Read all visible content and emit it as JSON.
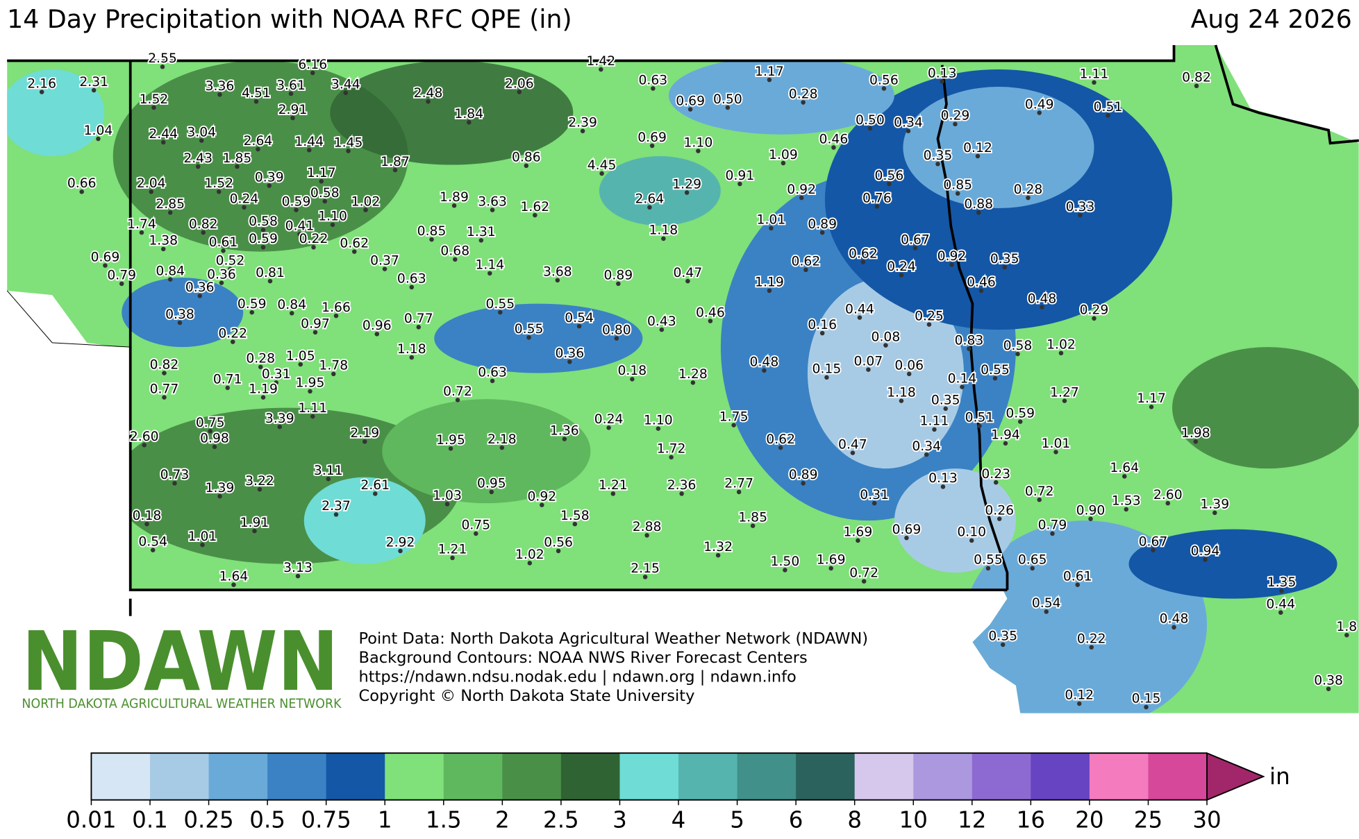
{
  "header": {
    "title": "14 Day Precipitation with NOAA RFC QPE (in)",
    "date": "Aug 24 2026"
  },
  "points": {
    "values": [
      2.55,
      2.16,
      2.31,
      1.52,
      3.36,
      4.51,
      3.61,
      6.16,
      3.44,
      2.91,
      2.48,
      1.42,
      2.06,
      1.84,
      0.63,
      0.69,
      0.5,
      1.17,
      0.28,
      0.56,
      0.13,
      1.11,
      0.82,
      0.49,
      0.51,
      0.5,
      0.34,
      0.29,
      1.04,
      2.44,
      3.04,
      2.39,
      2.64,
      1.44,
      1.45,
      0.69,
      1.1,
      0.46,
      0.12,
      0.35,
      2.43,
      1.85,
      1.87,
      0.86,
      4.45,
      1.09,
      0.66,
      2.04,
      1.52,
      0.39,
      1.17,
      0.58,
      0.91,
      0.56,
      0.85,
      0.28,
      1.29,
      0.92,
      0.76,
      0.24,
      0.59,
      1.02,
      1.89,
      3.63,
      1.62,
      2.64,
      0.88,
      0.33,
      2.85,
      0.82,
      0.58,
      0.41,
      1.1,
      1.74,
      1.01,
      0.89,
      0.85,
      1.31,
      1.18,
      1.38,
      0.61,
      0.59,
      0.22,
      0.62,
      0.67,
      0.69,
      0.52,
      0.68,
      0.62,
      0.62,
      0.92,
      0.35,
      0.37,
      1.14,
      0.24,
      0.79,
      0.84,
      0.36,
      0.81,
      0.63,
      3.68,
      0.89,
      0.47,
      1.19,
      0.46,
      0.36,
      0.48,
      0.29,
      0.59,
      0.84,
      1.66,
      0.55,
      0.44,
      0.25,
      0.38,
      0.97,
      0.96,
      0.77,
      0.54,
      0.8,
      0.43,
      0.46,
      0.16,
      0.22,
      0.55,
      0.08,
      0.83,
      0.58,
      1.02,
      1.18,
      0.36,
      0.82,
      0.28,
      1.05,
      1.78,
      0.18,
      1.28,
      0.48,
      0.15,
      0.07,
      0.06,
      0.55,
      0.63,
      0.31,
      0.71,
      1.95,
      0.14,
      0.77,
      1.19,
      0.72,
      1.18,
      1.27,
      1.17,
      0.35,
      1.11,
      0.59,
      0.75,
      3.39,
      0.24,
      1.1,
      1.75,
      1.11,
      0.51,
      2.6,
      0.98,
      2.19,
      1.95,
      2.18,
      1.36,
      1.72,
      0.62,
      0.47,
      0.34,
      1.94,
      1.01,
      1.98,
      1.64,
      3.11,
      0.73,
      0.13,
      0.23,
      3.22,
      1.39,
      2.61,
      0.95,
      1.21,
      2.36,
      2.77,
      0.89,
      0.72,
      1.03,
      0.92,
      0.31,
      2.6,
      1.53,
      0.9,
      1.39,
      2.37,
      0.26,
      0.18,
      1.58,
      1.85,
      1.91,
      0.75,
      2.88,
      0.79,
      1.69,
      0.69,
      0.1,
      0.54,
      1.01,
      2.92,
      1.21,
      0.56,
      1.32,
      0.67,
      0.94,
      1.02,
      1.5,
      1.69,
      0.55,
      0.65,
      3.13,
      2.15,
      0.72,
      0.61,
      1.64,
      1.35,
      0.54,
      0.44,
      0.48,
      1.8,
      0.35,
      0.22,
      0.38,
      0.12,
      0.15
    ],
    "value_labels": [
      "2.55",
      "2.16",
      "2.31",
      "1.52",
      "3.36",
      "4.51",
      "3.61",
      "6.16",
      "3.44",
      "2.91",
      "2.48",
      "1.42",
      "2.06",
      "1.84",
      "0.63",
      "0.69",
      "0.50",
      "1.17",
      "0.28",
      "0.56",
      "0.13",
      "1.11",
      "0.82",
      "0.49",
      "0.51",
      "0.50",
      "0.34",
      "0.29",
      "1.04",
      "2.44",
      "3.04",
      "2.39",
      "2.64",
      "1.44",
      "1.45",
      "0.69",
      "1.10",
      "0.46",
      "0.12",
      "0.35",
      "2.43",
      "1.85",
      "1.87",
      "0.86",
      "4.45",
      "1.09",
      "0.66",
      "2.04",
      "1.52",
      "0.39",
      "1.17",
      "0.58",
      "0.91",
      "0.56",
      "0.85",
      "0.28",
      "1.29",
      "0.92",
      "0.76",
      "0.24",
      "0.59",
      "1.02",
      "1.89",
      "3.63",
      "1.62",
      "2.64",
      "0.88",
      "0.33",
      "2.85",
      "0.82",
      "0.58",
      "0.41",
      "1.10",
      "1.74",
      "1.01",
      "0.89",
      "0.85",
      "1.31",
      "1.18",
      "1.38",
      "0.61",
      "0.59",
      "0.22",
      "0.62",
      "0.67",
      "0.69",
      "0.52",
      "0.68",
      "0.62",
      "0.62",
      "0.92",
      "0.35",
      "0.37",
      "1.14",
      "0.24",
      "0.79",
      "0.84",
      "0.36",
      "0.81",
      "0.63",
      "3.68",
      "0.89",
      "0.47",
      "1.19",
      "0.46",
      "0.36",
      "0.48",
      "0.29",
      "0.59",
      "0.84",
      "1.66",
      "0.55",
      "0.44",
      "0.25",
      "0.38",
      "0.97",
      "0.96",
      "0.77",
      "0.54",
      "0.80",
      "0.43",
      "0.46",
      "0.16",
      "0.22",
      "0.55",
      "0.08",
      "0.83",
      "0.58",
      "1.02",
      "1.18",
      "0.36",
      "0.82",
      "0.28",
      "1.05",
      "1.78",
      "0.18",
      "1.28",
      "0.48",
      "0.15",
      "0.07",
      "0.06",
      "0.55",
      "0.63",
      "0.31",
      "0.71",
      "1.95",
      "0.14",
      "0.77",
      "1.19",
      "0.72",
      "1.18",
      "1.27",
      "1.17",
      "0.35",
      "1.11",
      "0.59",
      "0.75",
      "3.39",
      "0.24",
      "1.10",
      "1.75",
      "1.11",
      "0.51",
      "2.60",
      "0.98",
      "2.19",
      "1.95",
      "2.18",
      "1.36",
      "1.72",
      "0.62",
      "0.47",
      "0.34",
      "1.94",
      "1.01",
      "1.98",
      "1.64",
      "3.11",
      "0.73",
      "0.13",
      "0.23",
      "3.22",
      "1.39",
      "2.61",
      "0.95",
      "1.21",
      "2.36",
      "2.77",
      "0.89",
      "0.72",
      "1.03",
      "0.92",
      "0.31",
      "2.60",
      "1.53",
      "0.90",
      "1.39",
      "2.37",
      "0.26",
      "0.18",
      "1.58",
      "1.85",
      "1.91",
      "0.75",
      "2.88",
      "0.79",
      "1.69",
      "0.69",
      "0.10",
      "0.54",
      "1.01",
      "2.92",
      "1.21",
      "0.56",
      "1.32",
      "0.67",
      "0.94",
      "1.02",
      "1.50",
      "1.69",
      "0.55",
      "0.65",
      "3.13",
      "2.15",
      "0.72",
      "0.61",
      "1.64",
      "1.35",
      "0.54",
      "0.44",
      "0.48",
      "1.8",
      "0.35",
      "0.22",
      "0.38",
      "0.12",
      "0.15"
    ]
  },
  "colorbar": {
    "ticks": [
      0.01,
      0.1,
      0.25,
      0.5,
      0.75,
      1,
      1.5,
      2,
      2.5,
      3,
      4,
      5,
      6,
      8,
      10,
      12,
      16,
      20,
      25,
      30
    ],
    "colors": [
      "#d7e6f5",
      "#a8cbe5",
      "#6aaad9",
      "#3a82c4",
      "#1457a6",
      "#80e07a",
      "#5fb85d",
      "#4a8f48",
      "#2f6333",
      "#6fdcd6",
      "#55b5ae",
      "#41908a",
      "#2b625e",
      "#d6c8ec",
      "#ac98de",
      "#8c6ad1",
      "#6644c2",
      "#f47bbe",
      "#d6489a"
    ],
    "extend_color": "#a2266a",
    "unit": "in"
  },
  "logo": {
    "name": "NDAWN",
    "subtitle": "NORTH DAKOTA AGRICULTURAL WEATHER NETWORK"
  },
  "credits": [
    "Point Data: North Dakota Agricultural Weather Network (NDAWN)",
    "Background Contours: NOAA NWS River Forecast Centers",
    "https://ndawn.ndsu.nodak.edu | ndawn.org | ndawn.info",
    "Copyright © North Dakota State University"
  ]
}
